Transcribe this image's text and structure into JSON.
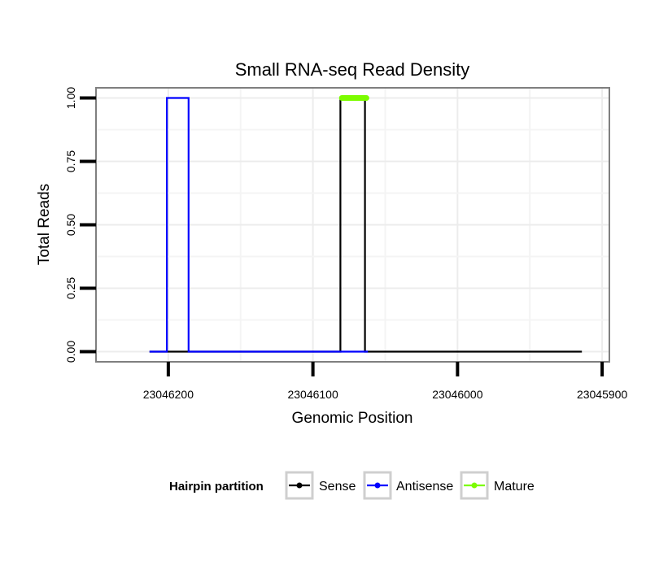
{
  "chart_data": {
    "type": "line",
    "title": "Small RNA-seq Read Density",
    "xlabel": "Genomic Position",
    "ylabel": "Total Reads",
    "x_reversed": true,
    "xlim": [
      23046250,
      23045895
    ],
    "ylim": [
      -0.04,
      1.04
    ],
    "x_ticks": [
      23046200,
      23046100,
      23046000,
      23045900
    ],
    "x_tick_labels": [
      "23046200",
      "23046100",
      "23046000",
      "23045900"
    ],
    "y_ticks": [
      0,
      0.25,
      0.5,
      0.75,
      1.0
    ],
    "y_tick_labels": [
      "0.00",
      "0.25",
      "0.50",
      "0.75",
      "1.00"
    ],
    "grid": true,
    "legend": {
      "title": "Hairpin partition",
      "position": "bottom",
      "entries": [
        "Sense",
        "Antisense",
        "Mature"
      ]
    },
    "series": [
      {
        "name": "Sense",
        "color": "#000000",
        "x": [
          23046213,
          23046081,
          23046081,
          23046079,
          23046079,
          23046064,
          23046064,
          23046062,
          23046062,
          23045914
        ],
        "y": [
          0,
          0,
          1,
          1,
          1,
          1,
          0,
          0,
          0,
          0
        ]
      },
      {
        "name": "Antisense",
        "color": "#0000ff",
        "x": [
          23046213,
          23046203,
          23046203,
          23046201,
          23046201,
          23046186,
          23046186,
          23046184,
          23046184,
          23046081,
          23046081,
          23046062
        ],
        "y": [
          0,
          0,
          0,
          0,
          1,
          1,
          0,
          0,
          0,
          0,
          0,
          0
        ]
      },
      {
        "name": "Mature",
        "color": "#7cfc00",
        "x": [
          23046080,
          23046063
        ],
        "y": [
          1,
          1
        ]
      }
    ]
  }
}
